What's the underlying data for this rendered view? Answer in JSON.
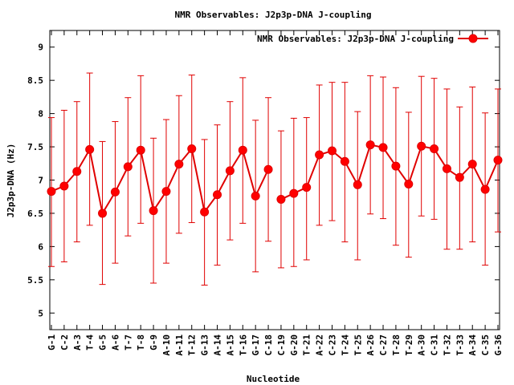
{
  "chart_data": {
    "type": "line",
    "title": "NMR Observables: J2p3p-DNA J-coupling",
    "xlabel": "Nucleotide",
    "ylabel": "J2p3p-DNA (Hz)",
    "ylim": [
      4.75,
      9.25
    ],
    "yticks": [
      5,
      5.5,
      6,
      6.5,
      7,
      7.5,
      8,
      8.5,
      9
    ],
    "grid": false,
    "legend_position": "top-right",
    "series_color": "#e00000",
    "categories": [
      "G-1",
      "C-2",
      "A-3",
      "T-4",
      "G-5",
      "A-6",
      "T-7",
      "T-8",
      "G-9",
      "A-10",
      "A-11",
      "T-12",
      "G-13",
      "A-14",
      "A-15",
      "T-16",
      "G-17",
      "C-18",
      "C-19",
      "G-20",
      "T-21",
      "A-22",
      "C-23",
      "T-24",
      "T-25",
      "A-26",
      "C-27",
      "T-28",
      "T-29",
      "A-30",
      "C-31",
      "T-32",
      "T-33",
      "A-34",
      "C-35",
      "G-36"
    ],
    "series": [
      {
        "name": "NMR Observables: J2p3p-DNA J-coupling",
        "segments": [
          [
            0,
            17
          ],
          [
            18,
            35
          ]
        ],
        "values": [
          6.83,
          6.91,
          7.13,
          7.46,
          6.5,
          6.82,
          7.2,
          7.45,
          6.54,
          6.83,
          7.24,
          7.47,
          6.52,
          6.78,
          7.14,
          7.45,
          6.76,
          7.16,
          6.71,
          6.8,
          6.89,
          7.38,
          7.44,
          7.28,
          6.93,
          7.53,
          7.49,
          7.21,
          6.94,
          7.51,
          7.47,
          7.17,
          7.04,
          7.24,
          6.86,
          7.3
        ],
        "err_low": [
          5.7,
          5.77,
          6.07,
          6.32,
          5.43,
          5.75,
          6.16,
          6.35,
          5.45,
          5.75,
          6.2,
          6.36,
          5.42,
          5.72,
          6.1,
          6.35,
          5.62,
          6.08,
          5.68,
          5.7,
          5.8,
          6.32,
          6.39,
          6.07,
          5.8,
          6.49,
          6.42,
          6.02,
          5.84,
          6.46,
          6.41,
          5.96,
          5.96,
          6.07,
          5.72,
          6.22
        ],
        "err_high": [
          7.94,
          8.05,
          8.18,
          8.61,
          7.58,
          7.88,
          8.24,
          8.57,
          7.63,
          7.91,
          8.27,
          8.58,
          7.61,
          7.83,
          8.18,
          8.54,
          7.9,
          8.24,
          7.74,
          7.93,
          7.94,
          8.43,
          8.47,
          8.47,
          8.03,
          8.57,
          8.55,
          8.39,
          8.02,
          8.56,
          8.53,
          8.37,
          8.1,
          8.4,
          8.01,
          8.37
        ]
      }
    ]
  }
}
